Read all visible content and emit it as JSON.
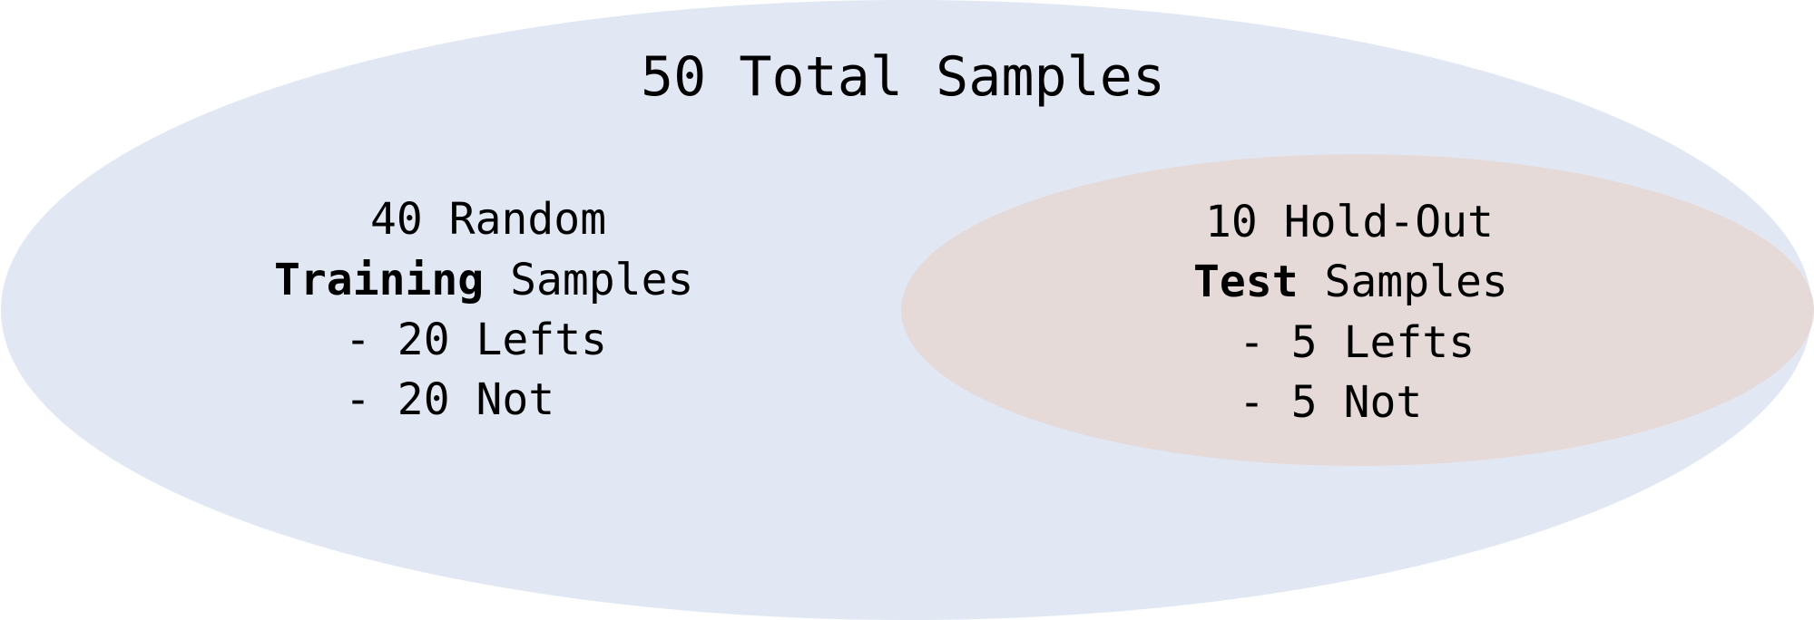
{
  "colors": {
    "outer_ellipse": "#e1e7f3",
    "inner_ellipse": "#e6dad9",
    "text": "#000000"
  },
  "total": {
    "title": "50 Total Samples"
  },
  "training": {
    "line1": "40 Random",
    "line2_bold": "Training",
    "line2_rest": " Samples",
    "line3": "- 20 Lefts",
    "line4": "- 20 Not"
  },
  "test": {
    "line1": "10 Hold-Out",
    "line2_bold": "Test",
    "line2_rest": " Samples",
    "line3": "- 5 Lefts",
    "line4": "- 5 Not"
  }
}
